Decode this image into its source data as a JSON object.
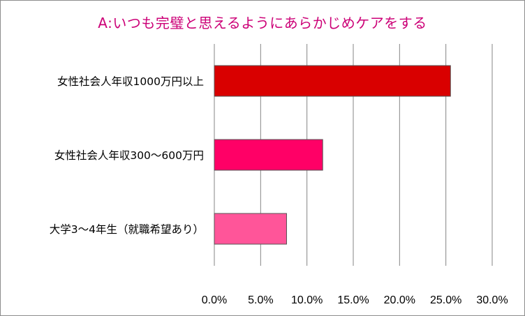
{
  "chart_data": {
    "type": "bar",
    "orientation": "horizontal",
    "title": "A:いつも完璧と思えるようにあらかじめケアをする",
    "categories": [
      "女性社会人年収1000万円以上",
      "女性社会人年収300～600万円",
      "大学3～4年生（就職希望あり）"
    ],
    "values": [
      25.5,
      11.7,
      7.8
    ],
    "value_unit": "%",
    "xlim": [
      0,
      30
    ],
    "x_ticks": [
      "0.0%",
      "5.0%",
      "10.0%",
      "15.0%",
      "20.0%",
      "25.0%",
      "30.0%"
    ],
    "grid": "vertical",
    "legend": "none",
    "colors": [
      "#d90000",
      "#ff0066",
      "#ff5599"
    ],
    "title_color": "#cc0077"
  }
}
